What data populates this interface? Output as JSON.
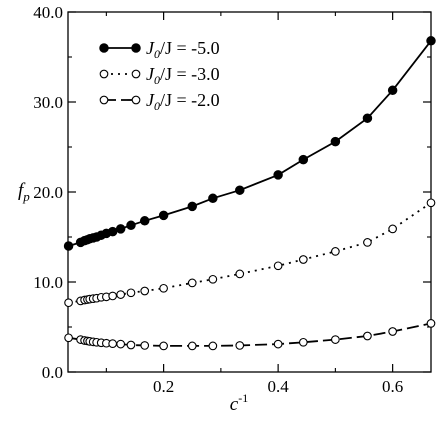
{
  "chart_data": {
    "type": "line",
    "xlabel": "c",
    "xlabel_sup": "-1",
    "ylabel": "f",
    "ylabel_sub": "p",
    "xlim": [
      0.033,
      0.667
    ],
    "ylim": [
      0,
      40
    ],
    "x_ticks": [
      0.2,
      0.4,
      0.6
    ],
    "x_tick_labels": [
      "0.2",
      "0.4",
      "0.6"
    ],
    "y_ticks": [
      0,
      10,
      20,
      30,
      40
    ],
    "y_tick_labels": [
      "0.0",
      "10.0",
      "20.0",
      "30.0",
      "40.0"
    ],
    "legend_position": "top-left",
    "series": [
      {
        "name": "J₀/J = -5.0",
        "label_main": "J",
        "label_sub": "0",
        "label_rest": "/J  = -5.0",
        "style": "solid",
        "marker": "filled-circle",
        "color": "#000000",
        "x": [
          0.034,
          0.055,
          0.062,
          0.067,
          0.071,
          0.077,
          0.083,
          0.091,
          0.1,
          0.111,
          0.125,
          0.143,
          0.167,
          0.2,
          0.25,
          0.286,
          0.333,
          0.4,
          0.444,
          0.5,
          0.556,
          0.6,
          0.667
        ],
        "y": [
          14.0,
          14.4,
          14.6,
          14.7,
          14.8,
          14.9,
          15.0,
          15.2,
          15.4,
          15.6,
          15.9,
          16.3,
          16.8,
          17.4,
          18.4,
          19.3,
          20.2,
          21.9,
          23.6,
          25.6,
          28.2,
          31.3,
          36.8
        ]
      },
      {
        "name": "J₀/J = -3.0",
        "label_main": "J",
        "label_sub": "0",
        "label_rest": "/J  = -3.0",
        "style": "dotted",
        "marker": "open-circle",
        "color": "#000000",
        "x": [
          0.034,
          0.055,
          0.062,
          0.067,
          0.071,
          0.077,
          0.083,
          0.091,
          0.1,
          0.111,
          0.125,
          0.143,
          0.167,
          0.2,
          0.25,
          0.286,
          0.333,
          0.4,
          0.444,
          0.5,
          0.556,
          0.6,
          0.667
        ],
        "y": [
          7.7,
          7.9,
          8.0,
          8.05,
          8.1,
          8.15,
          8.2,
          8.3,
          8.35,
          8.45,
          8.6,
          8.8,
          9.0,
          9.3,
          9.9,
          10.3,
          10.9,
          11.8,
          12.5,
          13.4,
          14.4,
          15.9,
          18.8
        ]
      },
      {
        "name": "J₀/J = -2.0",
        "label_main": "J",
        "label_sub": "0",
        "label_rest": "/J  = -2.0",
        "style": "dashed",
        "marker": "open-circle",
        "color": "#000000",
        "x": [
          0.034,
          0.055,
          0.062,
          0.067,
          0.071,
          0.077,
          0.083,
          0.091,
          0.1,
          0.111,
          0.125,
          0.143,
          0.167,
          0.2,
          0.25,
          0.286,
          0.333,
          0.4,
          0.444,
          0.5,
          0.556,
          0.6,
          0.667
        ],
        "y": [
          3.8,
          3.6,
          3.5,
          3.45,
          3.4,
          3.35,
          3.3,
          3.25,
          3.2,
          3.15,
          3.1,
          3.0,
          2.95,
          2.9,
          2.9,
          2.9,
          2.95,
          3.1,
          3.3,
          3.6,
          4.0,
          4.5,
          5.4
        ]
      }
    ]
  }
}
